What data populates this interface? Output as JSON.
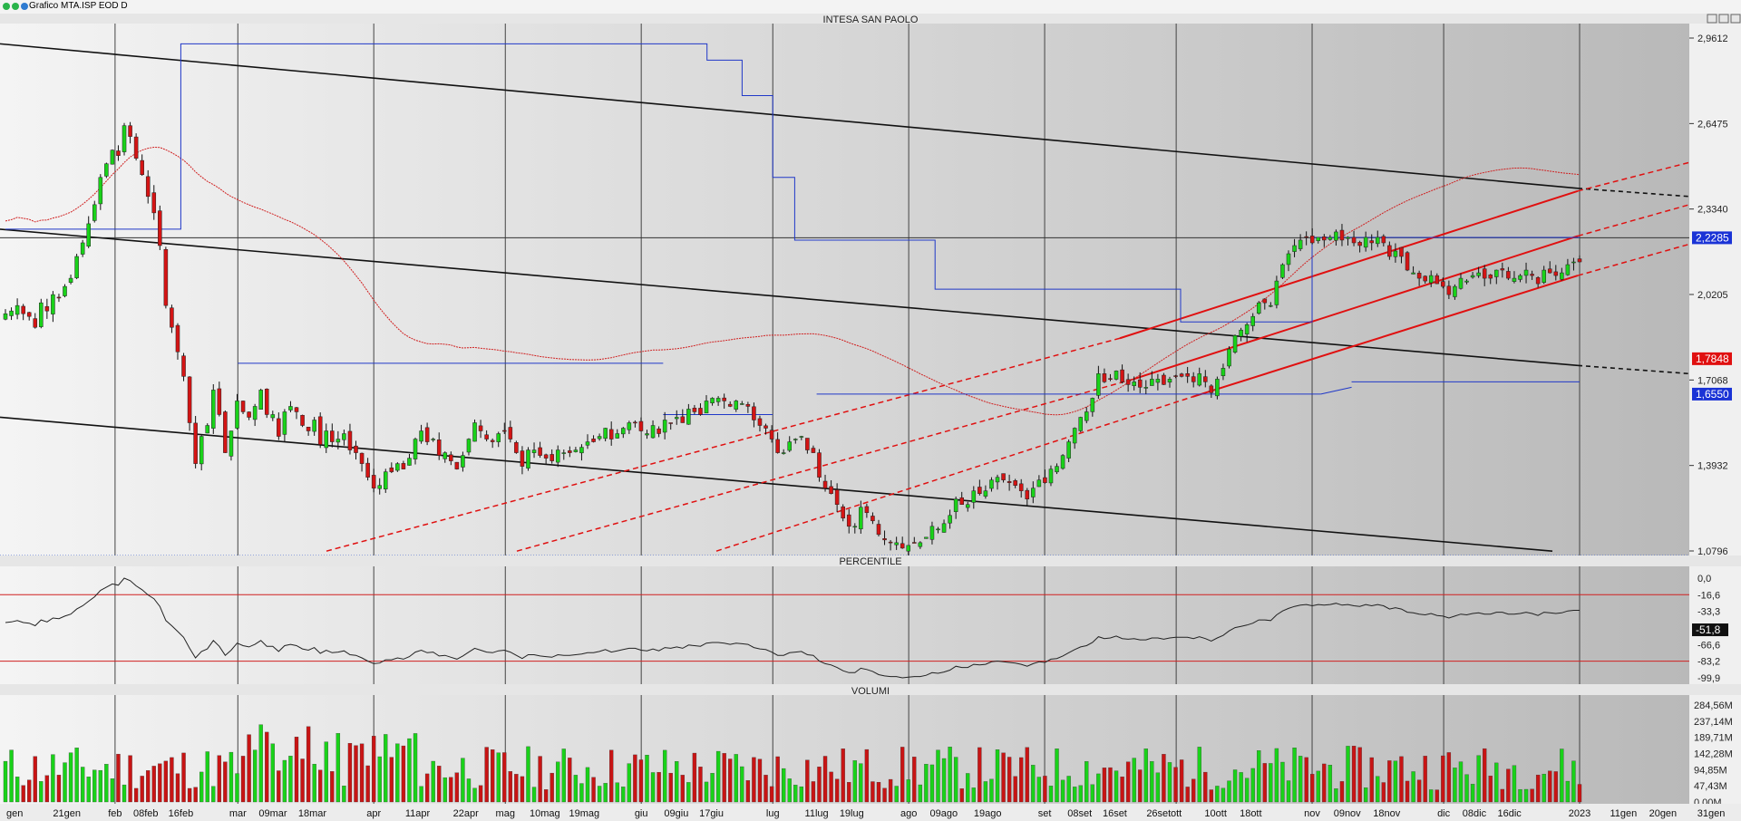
{
  "window": {
    "title": "Grafico MTA.ISP EOD D"
  },
  "chart_data": [
    {
      "type": "candlestick",
      "title": "INTESA SAN PAOLO",
      "ylim": [
        1.0796,
        2.9612
      ],
      "y_ticks": [
        "2,9612",
        "2,6475",
        "2,3340",
        "2,0205",
        "1,7068",
        "1,3932",
        "1,0796"
      ],
      "value_tags": [
        {
          "label": "2,2285",
          "value": 2.2285,
          "color": "#1a33d6"
        },
        {
          "label": "1,7848",
          "value": 1.7848,
          "color": "#e01010"
        },
        {
          "label": "1,6550",
          "value": 1.655,
          "color": "#1a33d6"
        }
      ],
      "closes": [
        1.95,
        1.96,
        1.98,
        1.95,
        1.94,
        1.9,
        1.99,
        1.96,
        2.02,
        2.01,
        2.05,
        2.08,
        2.16,
        2.21,
        2.28,
        2.35,
        2.45,
        2.5,
        2.55,
        2.53,
        2.64,
        2.6,
        2.52,
        2.46,
        2.38,
        2.32,
        2.2,
        1.98,
        1.9,
        1.81,
        1.72,
        1.55,
        1.4,
        1.5,
        1.54,
        1.67,
        1.58,
        1.44,
        1.52,
        1.63,
        1.59,
        1.57,
        1.61,
        1.67,
        1.58,
        1.58,
        1.5,
        1.59,
        1.61,
        1.59,
        1.54,
        1.52,
        1.56,
        1.47,
        1.52,
        1.48,
        1.49,
        1.51,
        1.45,
        1.44,
        1.4,
        1.35,
        1.31,
        1.32,
        1.37,
        1.37,
        1.4,
        1.38,
        1.42,
        1.49,
        1.52,
        1.48,
        1.49,
        1.43,
        1.44,
        1.41,
        1.38,
        1.43,
        1.49,
        1.55,
        1.52,
        1.49,
        1.48,
        1.51,
        1.52,
        1.49,
        1.44,
        1.39,
        1.45,
        1.45,
        1.43,
        1.42,
        1.41,
        1.45,
        1.44,
        1.44,
        1.45,
        1.46,
        1.48,
        1.48,
        1.5,
        1.53,
        1.49,
        1.51,
        1.53,
        1.55,
        1.55,
        1.52,
        1.51,
        1.54,
        1.51,
        1.56,
        1.55,
        1.57,
        1.55,
        1.6,
        1.59,
        1.58,
        1.63,
        1.64,
        1.64,
        1.63,
        1.61,
        1.63,
        1.62,
        1.61,
        1.56,
        1.54,
        1.53,
        1.49,
        1.44,
        1.44,
        1.48,
        1.49,
        1.5,
        1.45,
        1.44,
        1.35,
        1.31,
        1.29,
        1.25,
        1.2,
        1.17,
        1.17,
        1.24,
        1.22,
        1.19,
        1.14,
        1.12,
        1.11,
        1.11,
        1.09,
        1.1,
        1.11,
        1.11,
        1.13,
        1.17,
        1.16,
        1.18,
        1.21,
        1.27,
        1.25,
        1.25,
        1.3,
        1.29,
        1.3,
        1.34,
        1.35,
        1.34,
        1.33,
        1.32,
        1.3,
        1.27,
        1.31,
        1.34,
        1.33,
        1.38,
        1.39,
        1.43,
        1.48,
        1.53,
        1.57,
        1.59,
        1.64,
        1.73,
        1.7,
        1.71,
        1.74,
        1.7,
        1.69,
        1.7,
        1.68,
        1.68,
        1.71,
        1.71,
        1.69,
        1.71,
        1.72,
        1.72,
        1.72,
        1.7,
        1.73,
        1.7,
        1.66,
        1.71,
        1.75,
        1.82,
        1.87,
        1.89,
        1.91,
        1.94,
        1.99,
        1.99,
        1.98,
        2.07,
        2.13,
        2.17,
        2.2,
        2.22,
        2.23,
        2.21,
        2.23,
        2.22,
        2.23,
        2.25,
        2.22,
        2.23,
        2.21,
        2.2,
        2.23,
        2.21,
        2.23,
        2.21,
        2.16,
        2.18,
        2.16,
        2.11,
        2.1,
        2.08,
        2.07,
        2.09,
        2.06,
        2.05,
        2.02,
        2.05,
        2.08,
        2.07,
        2.09,
        2.1,
        2.08,
        2.08,
        2.11,
        2.11,
        2.08,
        2.08,
        2.09,
        2.11,
        2.09,
        2.06,
        2.11,
        2.1,
        2.09,
        2.1,
        2.13,
        2.14,
        2.14
      ]
    },
    {
      "type": "line",
      "title": "PERCENTILE",
      "ylim": [
        -99.9,
        0
      ],
      "y_ticks": [
        "0,0",
        "-16,6",
        "-33,3",
        "-66,6",
        "-83,2",
        "-99,9"
      ],
      "reference_lines": [
        -16.6,
        -83.2
      ],
      "last_value_tag": "-51,8"
    },
    {
      "type": "bar",
      "title": "VOLUMI",
      "ylim": [
        0,
        284.56
      ],
      "y_ticks": [
        "284,56M",
        "237,14M",
        "189,71M",
        "142,28M",
        "94,85M",
        "47,43M",
        "0,00M"
      ]
    }
  ],
  "x_axis_labels": [
    {
      "label": "gen",
      "day": 0
    },
    {
      "label": "21gen",
      "day": 14
    },
    {
      "label": "feb",
      "day": 25
    },
    {
      "label": "08feb",
      "day": 32
    },
    {
      "label": "16feb",
      "day": 40
    },
    {
      "label": "mar",
      "day": 53
    },
    {
      "label": "09mar",
      "day": 61
    },
    {
      "label": "18mar",
      "day": 70
    },
    {
      "label": "apr",
      "day": 84
    },
    {
      "label": "11apr",
      "day": 94
    },
    {
      "label": "22apr",
      "day": 105
    },
    {
      "label": "mag",
      "day": 114
    },
    {
      "label": "10mag",
      "day": 123
    },
    {
      "label": "19mag",
      "day": 132
    },
    {
      "label": "giu",
      "day": 145
    },
    {
      "label": "09giu",
      "day": 153
    },
    {
      "label": "17giu",
      "day": 161
    },
    {
      "label": "lug",
      "day": 175
    },
    {
      "label": "11lug",
      "day": 185
    },
    {
      "label": "19lug",
      "day": 193
    },
    {
      "label": "ago",
      "day": 206
    },
    {
      "label": "09ago",
      "day": 214
    },
    {
      "label": "19ago",
      "day": 224
    },
    {
      "label": "set",
      "day": 237
    },
    {
      "label": "08set",
      "day": 245
    },
    {
      "label": "16set",
      "day": 253
    },
    {
      "label": "26set",
      "day": 263
    },
    {
      "label": "ott",
      "day": 267
    },
    {
      "label": "10ott",
      "day": 276
    },
    {
      "label": "18ott",
      "day": 284
    },
    {
      "label": "nov",
      "day": 298
    },
    {
      "label": "09nov",
      "day": 306
    },
    {
      "label": "18nov",
      "day": 315
    },
    {
      "label": "dic",
      "day": 328
    },
    {
      "label": "08dic",
      "day": 335
    },
    {
      "label": "16dic",
      "day": 343
    },
    {
      "label": "2023",
      "day": 359
    },
    {
      "label": "11gen",
      "day": 369
    },
    {
      "label": "20gen",
      "day": 378
    },
    {
      "label": "31gen",
      "day": 389
    }
  ]
}
